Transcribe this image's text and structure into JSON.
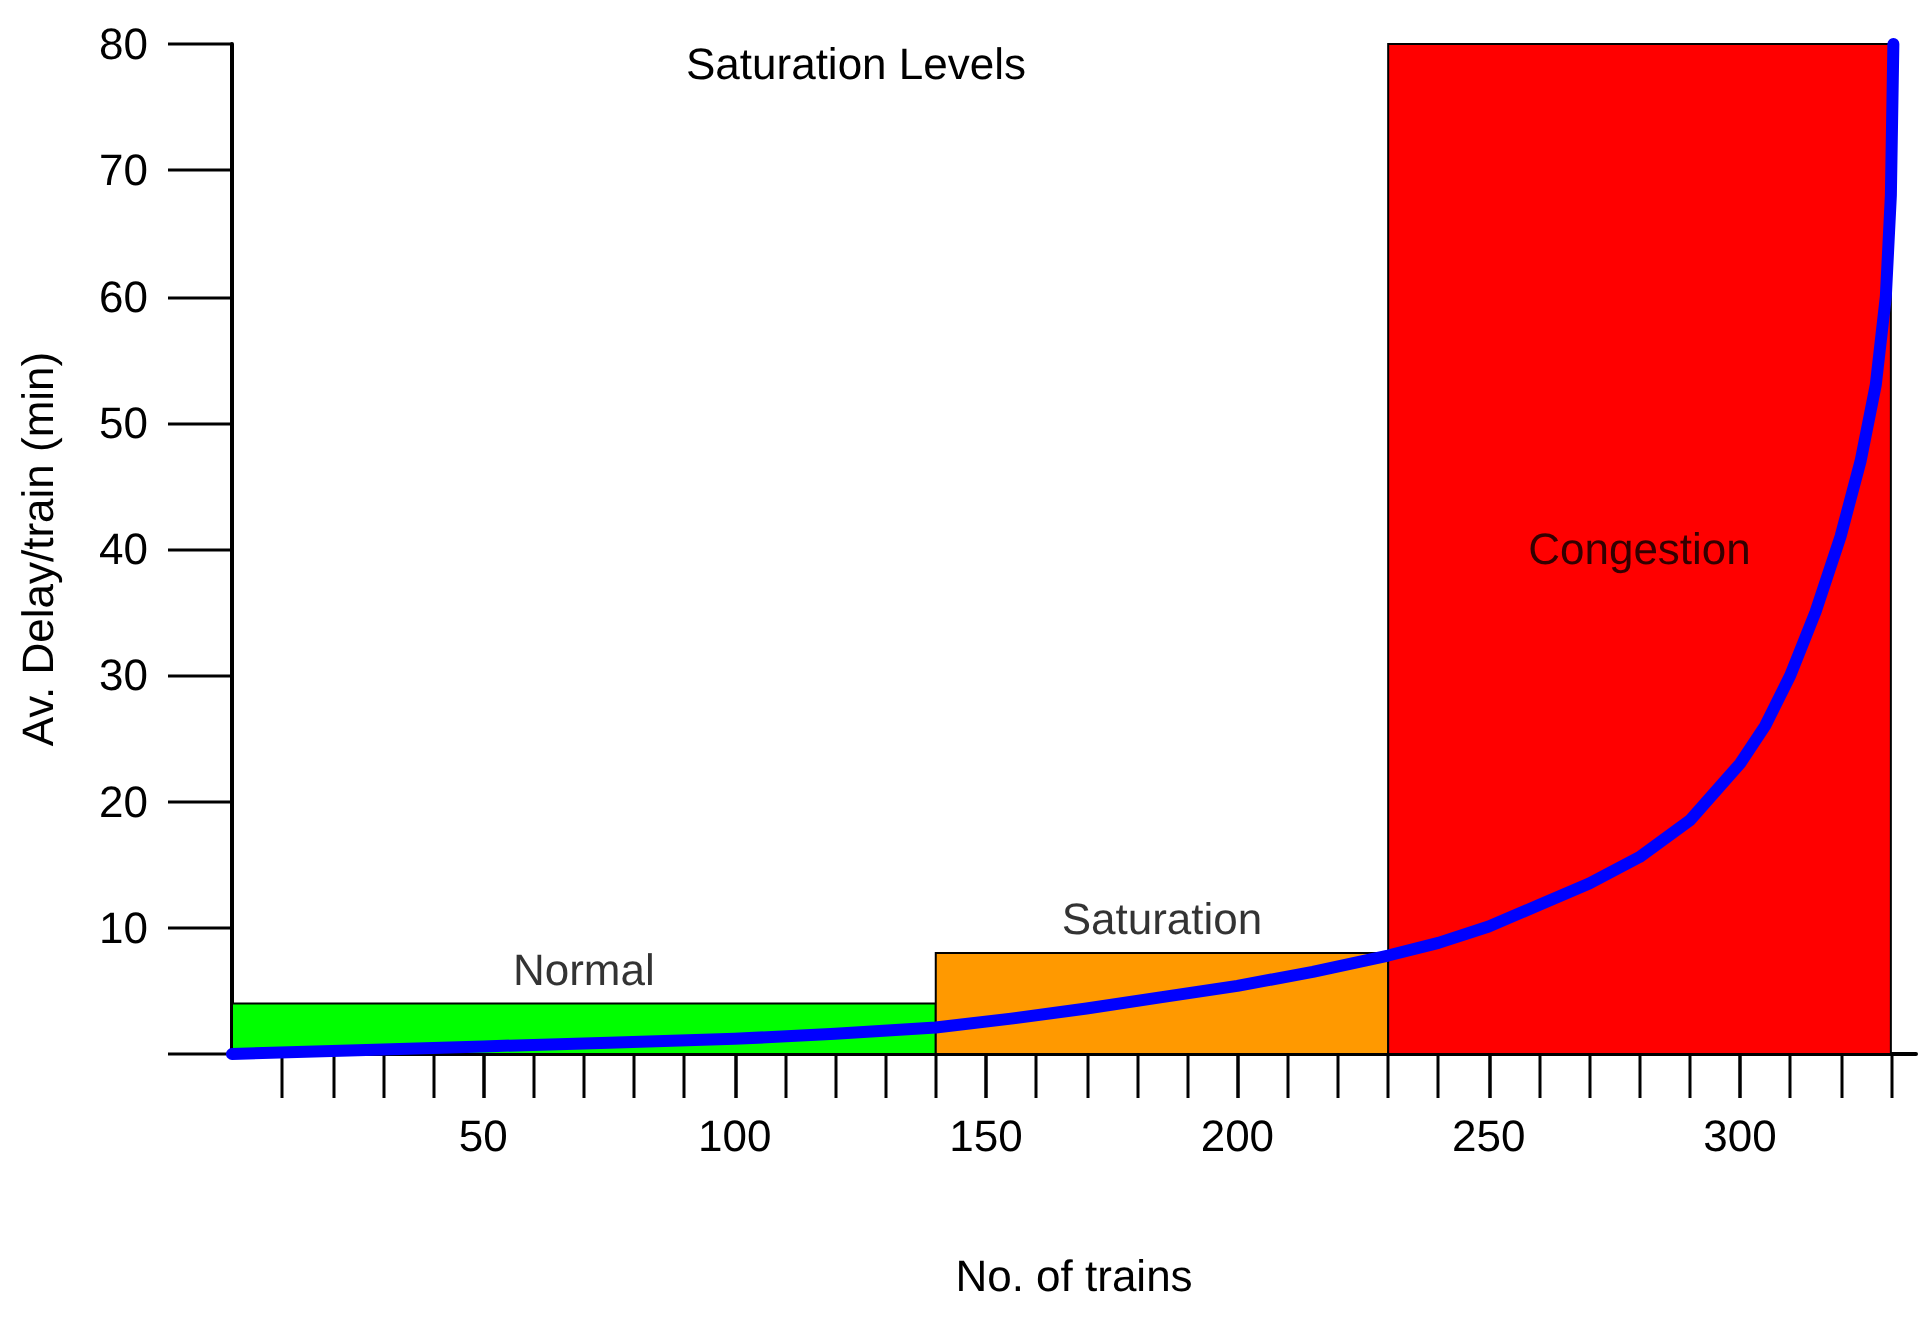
{
  "chart_data": {
    "type": "histogram",
    "title": "Saturation Levels",
    "xlabel": "No. of trains",
    "ylabel": "Av. Delay/train (min)",
    "bins": [
      0,
      140,
      230,
      330
    ],
    "values": [
      4,
      8,
      80
    ],
    "colors": [
      "#00ff00",
      "#ff9900",
      "#ff0000"
    ],
    "series": [
      {
        "type": "line",
        "color": "#0000ff",
        "x": [
          0,
          25,
          50,
          75,
          100,
          120,
          140,
          155,
          170,
          185,
          200,
          215,
          230,
          240,
          250,
          260,
          270,
          280,
          290,
          300,
          305,
          310,
          315,
          320,
          324,
          327,
          329,
          330,
          330.5
        ],
        "values": [
          0,
          0.3,
          0.6,
          0.9,
          1.2,
          1.6,
          2.1,
          2.8,
          3.6,
          4.5,
          5.4,
          6.5,
          7.8,
          8.8,
          10.1,
          11.8,
          13.5,
          15.6,
          18.5,
          23,
          26,
          30,
          35,
          41,
          47,
          53,
          60,
          68,
          80
        ]
      }
    ],
    "annotations": [
      "Normal",
      "Saturation",
      "Congestion"
    ],
    "xlim": [
      0,
      335
    ],
    "xticks": [
      50,
      100,
      150,
      200,
      250,
      300
    ],
    "ylim": [
      0,
      80
    ],
    "yticks": [
      {
        "value": 0,
        "label": null
      },
      10,
      20,
      30,
      40,
      50,
      60,
      70,
      80
    ],
    "grid": false,
    "marker": "none",
    "line_style": "solid"
  }
}
